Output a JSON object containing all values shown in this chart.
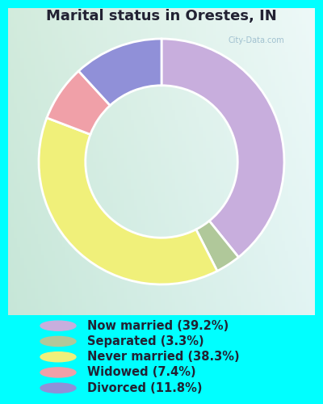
{
  "title": "Marital status in Orestes, IN",
  "slices": [
    39.2,
    3.3,
    38.3,
    7.4,
    11.8
  ],
  "labels": [
    "Now married (39.2%)",
    "Separated (3.3%)",
    "Never married (38.3%)",
    "Widowed (7.4%)",
    "Divorced (11.8%)"
  ],
  "colors": [
    "#c8aedd",
    "#b0c89a",
    "#f0f07a",
    "#f0a0a8",
    "#9090d8"
  ],
  "background_color": "#00ffff",
  "chart_bg": "#d8ede0",
  "title_color": "#222233",
  "legend_text_color": "#222233",
  "watermark": "City-Data.com",
  "donut_width": 0.38,
  "figsize": [
    4.0,
    5.0
  ],
  "dpi": 100
}
